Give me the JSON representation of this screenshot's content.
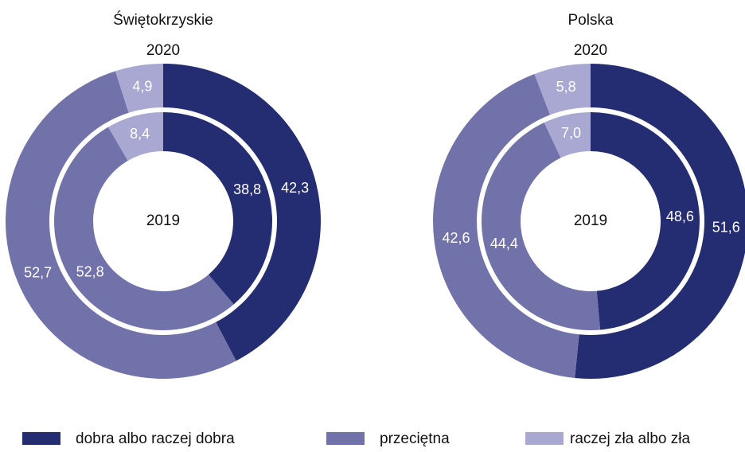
{
  "chart_data": {
    "type": "donut",
    "categories": [
      "dobra albo raczej dobra",
      "przeciętna",
      "raczej zła albo zła"
    ],
    "colors": [
      "#252d72",
      "#7272aa",
      "#a8a8d2"
    ],
    "panels": [
      {
        "title": "Świętokrzyskie",
        "series": [
          {
            "name": "2020",
            "values": [
              42.3,
              52.7,
              4.9
            ],
            "value_labels": [
              "42,3",
              "52,7",
              "4,9"
            ]
          },
          {
            "name": "2019",
            "values": [
              38.8,
              52.8,
              8.4
            ],
            "value_labels": [
              "38,8",
              "52,8",
              "8,4"
            ]
          }
        ]
      },
      {
        "title": "Polska",
        "series": [
          {
            "name": "2020",
            "values": [
              51.6,
              42.6,
              5.8
            ],
            "value_labels": [
              "51,6",
              "42,6",
              "5,8"
            ]
          },
          {
            "name": "2019",
            "values": [
              48.6,
              44.4,
              7.0
            ],
            "value_labels": [
              "48,6",
              "44,4",
              "7,0"
            ]
          }
        ]
      }
    ]
  }
}
